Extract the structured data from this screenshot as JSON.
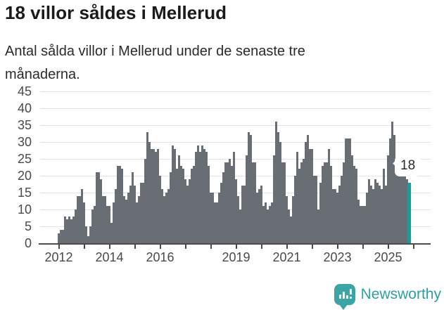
{
  "header": {
    "title": "18 villor såldes i Mellerud",
    "subtitle": "Antal sålda villor i Mellerud under de senaste tre månaderna."
  },
  "chart_data": {
    "type": "bar",
    "title": "18 villor såldes i Mellerud",
    "subtitle": "Antal sålda villor i Mellerud under de senaste tre månaderna.",
    "x_start_month": "2012-01",
    "x_end_month": "2025-11",
    "x_frequency": "monthly",
    "values": [
      3,
      4,
      4,
      8,
      7,
      8,
      7,
      8,
      10,
      14,
      14,
      16,
      12,
      5,
      2,
      5,
      10,
      11,
      21,
      21,
      19,
      14,
      14,
      11,
      11,
      6,
      12,
      16,
      23,
      23,
      22,
      14,
      13,
      15,
      17,
      21,
      17,
      12,
      14,
      18,
      18,
      25,
      33,
      30,
      28,
      28,
      27,
      28,
      20,
      16,
      14,
      15,
      16,
      21,
      29,
      28,
      22,
      26,
      23,
      22,
      19,
      17,
      19,
      22,
      23,
      27,
      29,
      27,
      29,
      28,
      27,
      23,
      15,
      15,
      12,
      12,
      15,
      18,
      21,
      24,
      24,
      25,
      23,
      27,
      19,
      14,
      10,
      17,
      17,
      26,
      33,
      32,
      24,
      24,
      15,
      16,
      17,
      11,
      12,
      10,
      11,
      12,
      26,
      36,
      33,
      30,
      24,
      24,
      14,
      10,
      8,
      14,
      20,
      27,
      22,
      24,
      25,
      30,
      32,
      28,
      28,
      20,
      20,
      10,
      18,
      23,
      24,
      24,
      28,
      23,
      16,
      16,
      15,
      17,
      20,
      24,
      31,
      31,
      31,
      26,
      23,
      22,
      13,
      11,
      11,
      11,
      15,
      19,
      17,
      16,
      19,
      18,
      17,
      16,
      22,
      17,
      26,
      31,
      36,
      32,
      25,
      25,
      23,
      24,
      21,
      19,
      18
    ],
    "highlight_last_value": 18,
    "highlight_label": "18",
    "bar_color": "#696e74",
    "highlight_color": "#1b9b9c",
    "ylim": [
      0,
      45
    ],
    "ytick_labels": [
      "0",
      "5",
      "10",
      "15",
      "20",
      "25",
      "30",
      "35",
      "40",
      "45"
    ],
    "xtick_labels": [
      "2012",
      "2014",
      "2016",
      "2019",
      "2021",
      "2023",
      "2025"
    ],
    "xtick_years_labeled": [
      2012,
      2014,
      2016,
      2019,
      2021,
      2023,
      2025
    ],
    "xtick_years_all": [
      2012,
      2013,
      2014,
      2015,
      2016,
      2017,
      2018,
      2019,
      2020,
      2021,
      2022,
      2023,
      2024,
      2025,
      2026
    ],
    "grid": true,
    "legend": "none"
  },
  "annotation": {
    "value_label": "18"
  },
  "brand": {
    "name": "Newsworthy",
    "text_color": "#2d9fa0",
    "icon": "newsworthy-speech-bubble-chart-icon",
    "icon_color": "#3ba4a4"
  }
}
